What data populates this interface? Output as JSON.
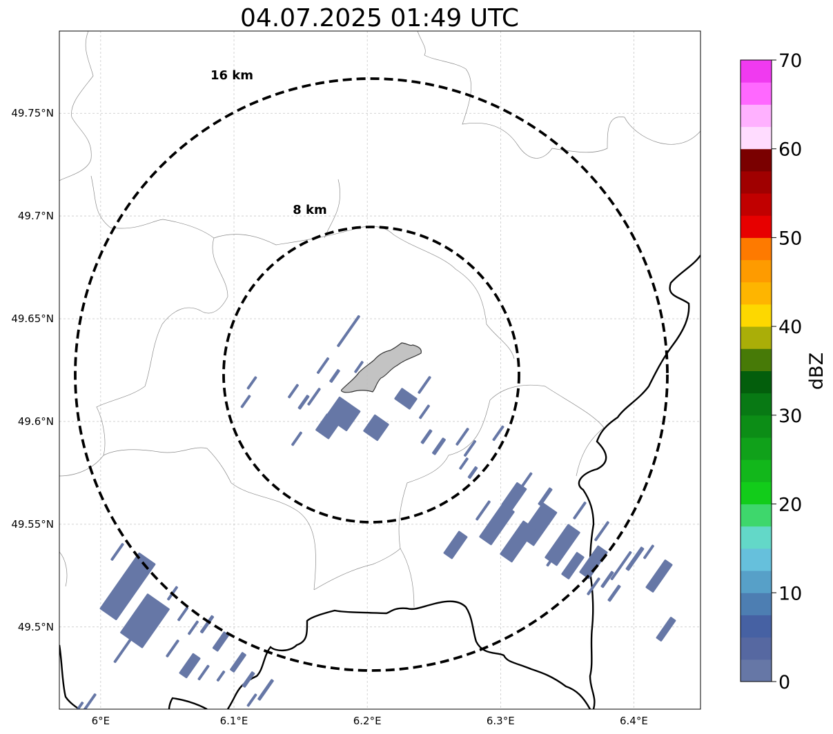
{
  "title": "04.07.2025 01:49 UTC",
  "map": {
    "lon_ticks": [
      "6°E",
      "6.1°E",
      "6.2°E",
      "6.3°E",
      "6.4°E"
    ],
    "lat_ticks": [
      "49.75°N",
      "49.7°N",
      "49.65°N",
      "49.6°N",
      "49.55°N",
      "49.5°N"
    ],
    "lon_values": [
      6.0,
      6.1,
      6.2,
      6.3,
      6.4
    ],
    "lat_values": [
      49.75,
      49.7,
      49.65,
      49.6,
      49.55,
      49.5
    ],
    "extent": {
      "lon_min": 5.969,
      "lon_max": 6.45,
      "lat_min": 49.46,
      "lat_max": 49.79
    },
    "grid": true,
    "center": {
      "lon": 6.202,
      "lat": 49.623
    },
    "rings": [
      {
        "radius_km": 8,
        "label": "8 km"
      },
      {
        "radius_km": 16,
        "label": "16 km"
      }
    ],
    "echo_color": "#6677a6",
    "highlight_area_color": "#bdbdbd"
  },
  "colorbar": {
    "label": "dBZ",
    "min": 0,
    "max": 70,
    "ticks": [
      "0",
      "10",
      "20",
      "30",
      "40",
      "50",
      "60",
      "70"
    ],
    "colors": [
      "#6677a6",
      "#5668a1",
      "#4661a3",
      "#4d7eb2",
      "#57a0c8",
      "#66c0dc",
      "#63d8c8",
      "#3ed76c",
      "#12cc1a",
      "#12b71b",
      "#10a11a",
      "#0c8d16",
      "#087914",
      "#035e0c",
      "#477a07",
      "#aaae08",
      "#fdd800",
      "#feb500",
      "#fe9b00",
      "#fe7a00",
      "#e70000",
      "#c10000",
      "#a00000",
      "#7a0000",
      "#ffdcff",
      "#ffb1ff",
      "#ff68ff",
      "#f03af0"
    ]
  }
}
